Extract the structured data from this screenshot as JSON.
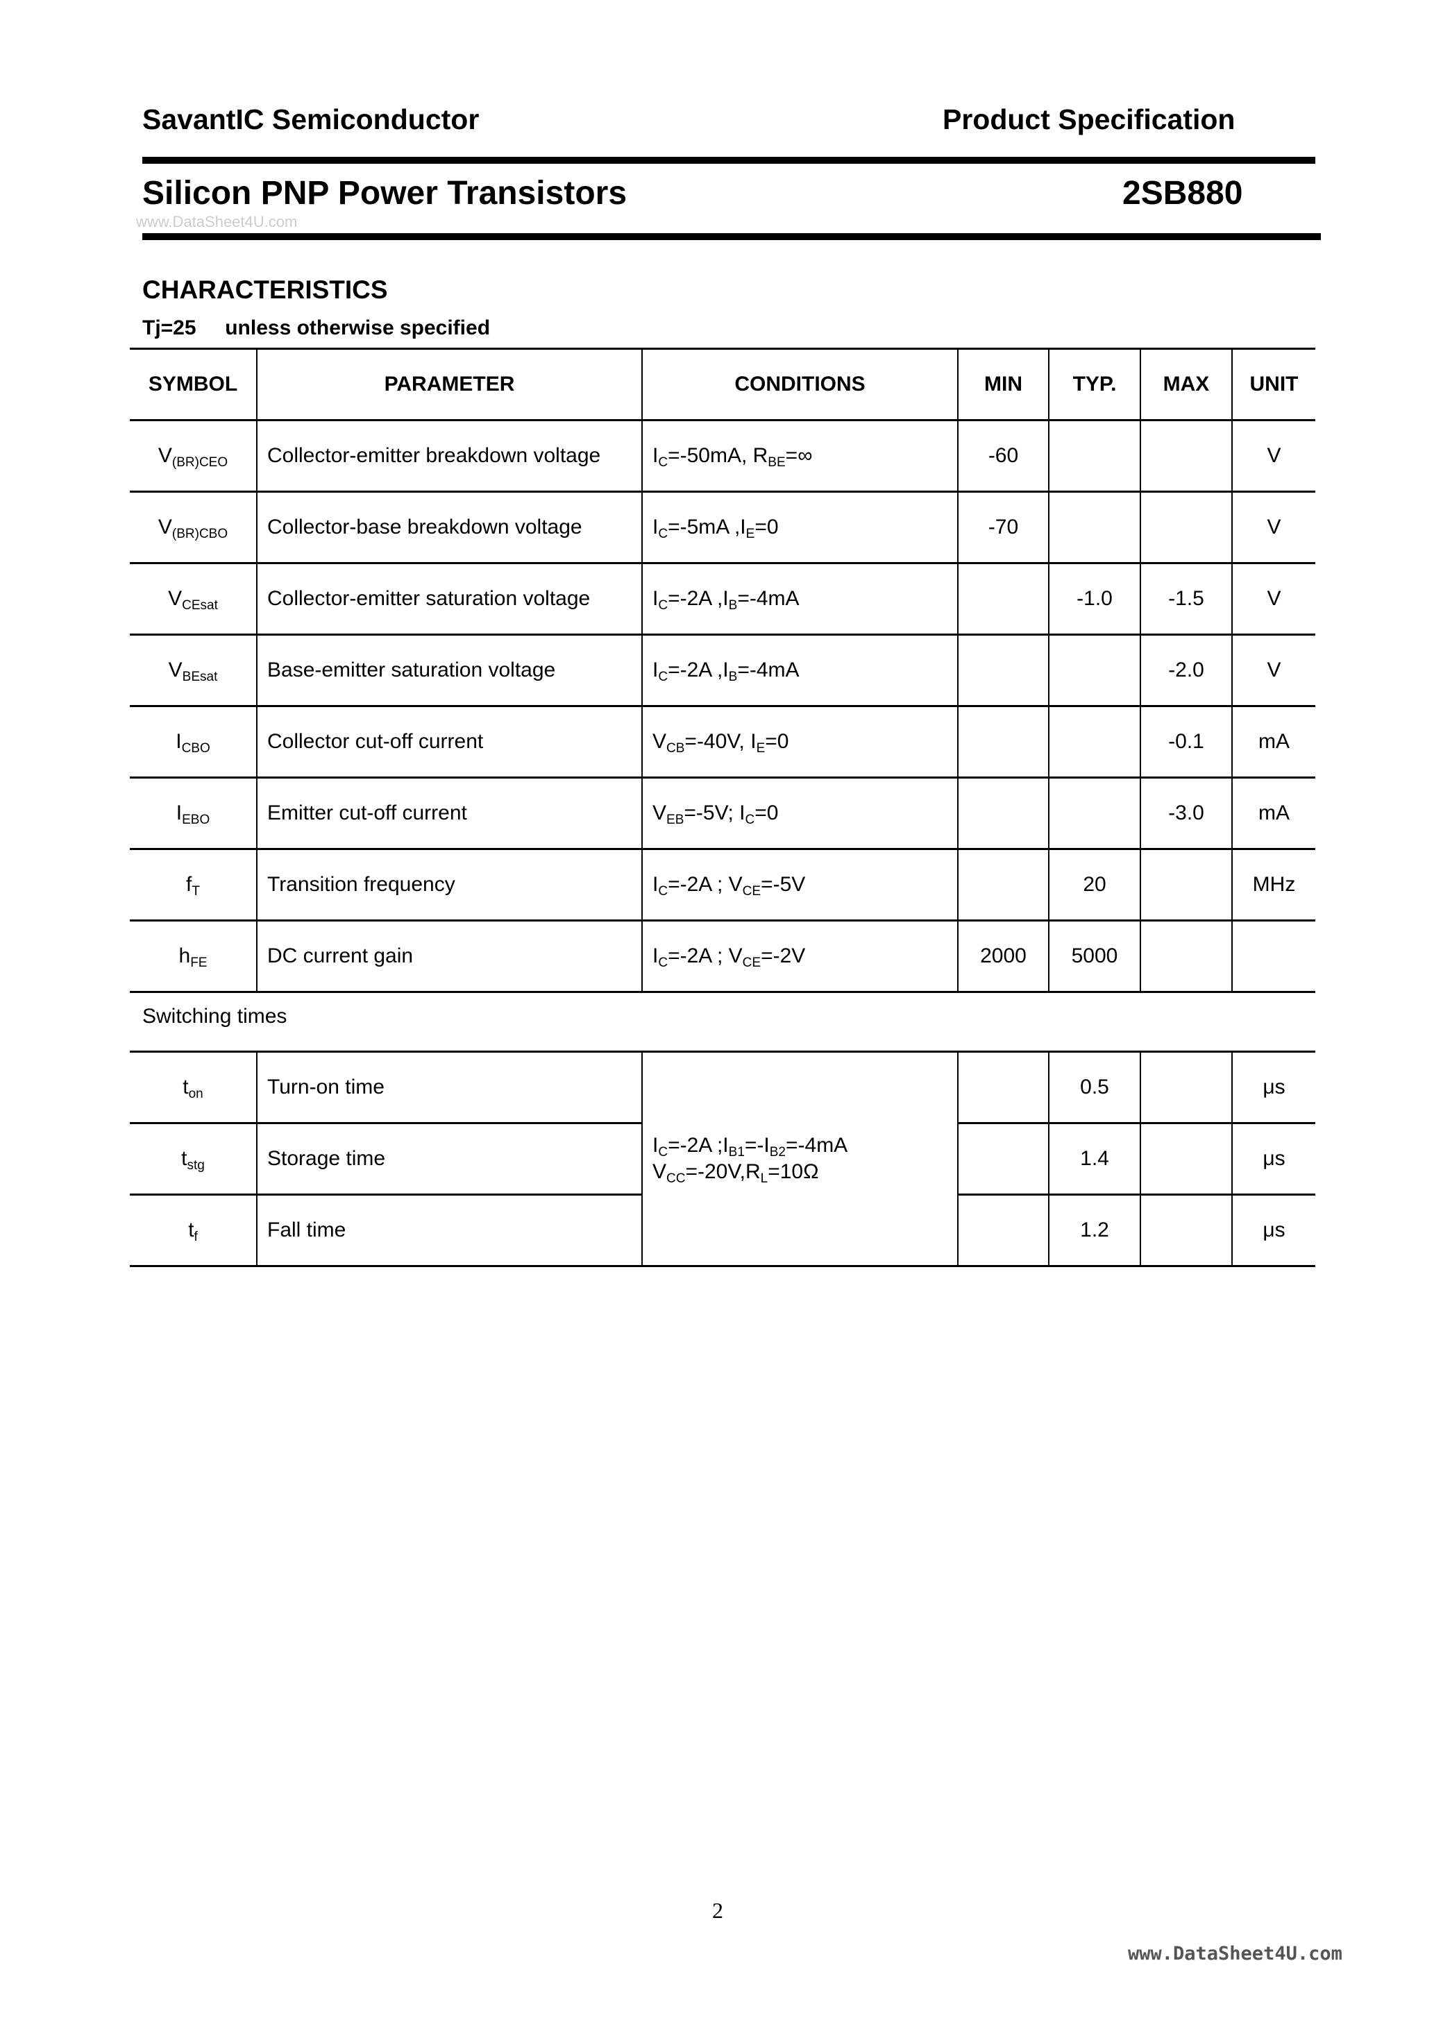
{
  "header": {
    "company": "SavantIC Semiconductor",
    "doc_type": "Product Specification",
    "title": "Silicon PNP Power Transistors",
    "part": "2SB880",
    "watermark": "www.DataSheet4U.com"
  },
  "section": {
    "title": "CHARACTERISTICS",
    "condition": "Tj=25     unless otherwise specified"
  },
  "table": {
    "columns": [
      "SYMBOL",
      "PARAMETER",
      "CONDITIONS",
      "MIN",
      "TYP.",
      "MAX",
      "UNIT"
    ],
    "rows": [
      {
        "sym": "V",
        "sub": "(BR)CEO",
        "param": "Collector-emitter breakdown voltage",
        "cond": [
          [
            "I",
            "C",
            "=-50mA, R"
          ],
          [
            "",
            "BE",
            "=∞"
          ]
        ],
        "min": "-60",
        "typ": "",
        "max": "",
        "unit": "V"
      },
      {
        "sym": "V",
        "sub": "(BR)CBO",
        "param": "Collector-base breakdown voltage",
        "cond": [
          [
            "I",
            "C",
            "=-5mA ,I"
          ],
          [
            "",
            "E",
            "=0"
          ]
        ],
        "min": "-70",
        "typ": "",
        "max": "",
        "unit": "V"
      },
      {
        "sym": "V",
        "sub": "CEsat",
        "param": "Collector-emitter saturation voltage",
        "cond": [
          [
            "I",
            "C",
            "=-2A ,I"
          ],
          [
            "",
            "B",
            "=-4mA"
          ]
        ],
        "min": "",
        "typ": "-1.0",
        "max": "-1.5",
        "unit": "V"
      },
      {
        "sym": "V",
        "sub": "BEsat",
        "param": "Base-emitter saturation voltage",
        "cond": [
          [
            "I",
            "C",
            "=-2A ,I"
          ],
          [
            "",
            "B",
            "=-4mA"
          ]
        ],
        "min": "",
        "typ": "",
        "max": "-2.0",
        "unit": "V"
      },
      {
        "sym": "I",
        "sub": "CBO",
        "param": "Collector cut-off current",
        "cond": [
          [
            "V",
            "CB",
            "=-40V, I"
          ],
          [
            "",
            "E",
            "=0"
          ]
        ],
        "min": "",
        "typ": "",
        "max": "-0.1",
        "unit": "mA"
      },
      {
        "sym": "I",
        "sub": "EBO",
        "param": "Emitter cut-off current",
        "cond": [
          [
            "V",
            "EB",
            "=-5V; I"
          ],
          [
            "",
            "C",
            "=0"
          ]
        ],
        "min": "",
        "typ": "",
        "max": "-3.0",
        "unit": "mA"
      },
      {
        "sym": "f",
        "sub": "T",
        "param": "Transition frequency",
        "cond": [
          [
            "I",
            "C",
            "=-2A ; V"
          ],
          [
            "",
            "CE",
            "=-5V"
          ]
        ],
        "min": "",
        "typ": "20",
        "max": "",
        "unit": "MHz"
      },
      {
        "sym": "h",
        "sub": "FE",
        "param": "DC current gain",
        "cond": [
          [
            "I",
            "C",
            "=-2A ; V"
          ],
          [
            "",
            "CE",
            "=-2V"
          ]
        ],
        "min": "2000",
        "typ": "5000",
        "max": "",
        "unit": ""
      }
    ]
  },
  "switching": {
    "label": "Switching times",
    "cond_line1": [
      [
        "I",
        "C",
        "=-2A ;I"
      ],
      [
        "",
        "B1",
        "=-I"
      ],
      [
        "",
        "B2",
        "=-4mA"
      ]
    ],
    "cond_line2": [
      [
        "V",
        "CC",
        "=-20V,R"
      ],
      [
        "",
        "L",
        "=10Ω"
      ]
    ],
    "rows": [
      {
        "sym": "t",
        "sub": "on",
        "param": "Turn-on time",
        "min": "",
        "typ": "0.5",
        "max": "",
        "unit": "μs"
      },
      {
        "sym": "t",
        "sub": "stg",
        "param": "Storage time",
        "min": "",
        "typ": "1.4",
        "max": "",
        "unit": "μs"
      },
      {
        "sym": "t",
        "sub": "f",
        "param": "Fall time",
        "min": "",
        "typ": "1.2",
        "max": "",
        "unit": "μs"
      }
    ]
  },
  "footer": {
    "page": "2",
    "watermark": "www.DataSheet4U.com"
  }
}
